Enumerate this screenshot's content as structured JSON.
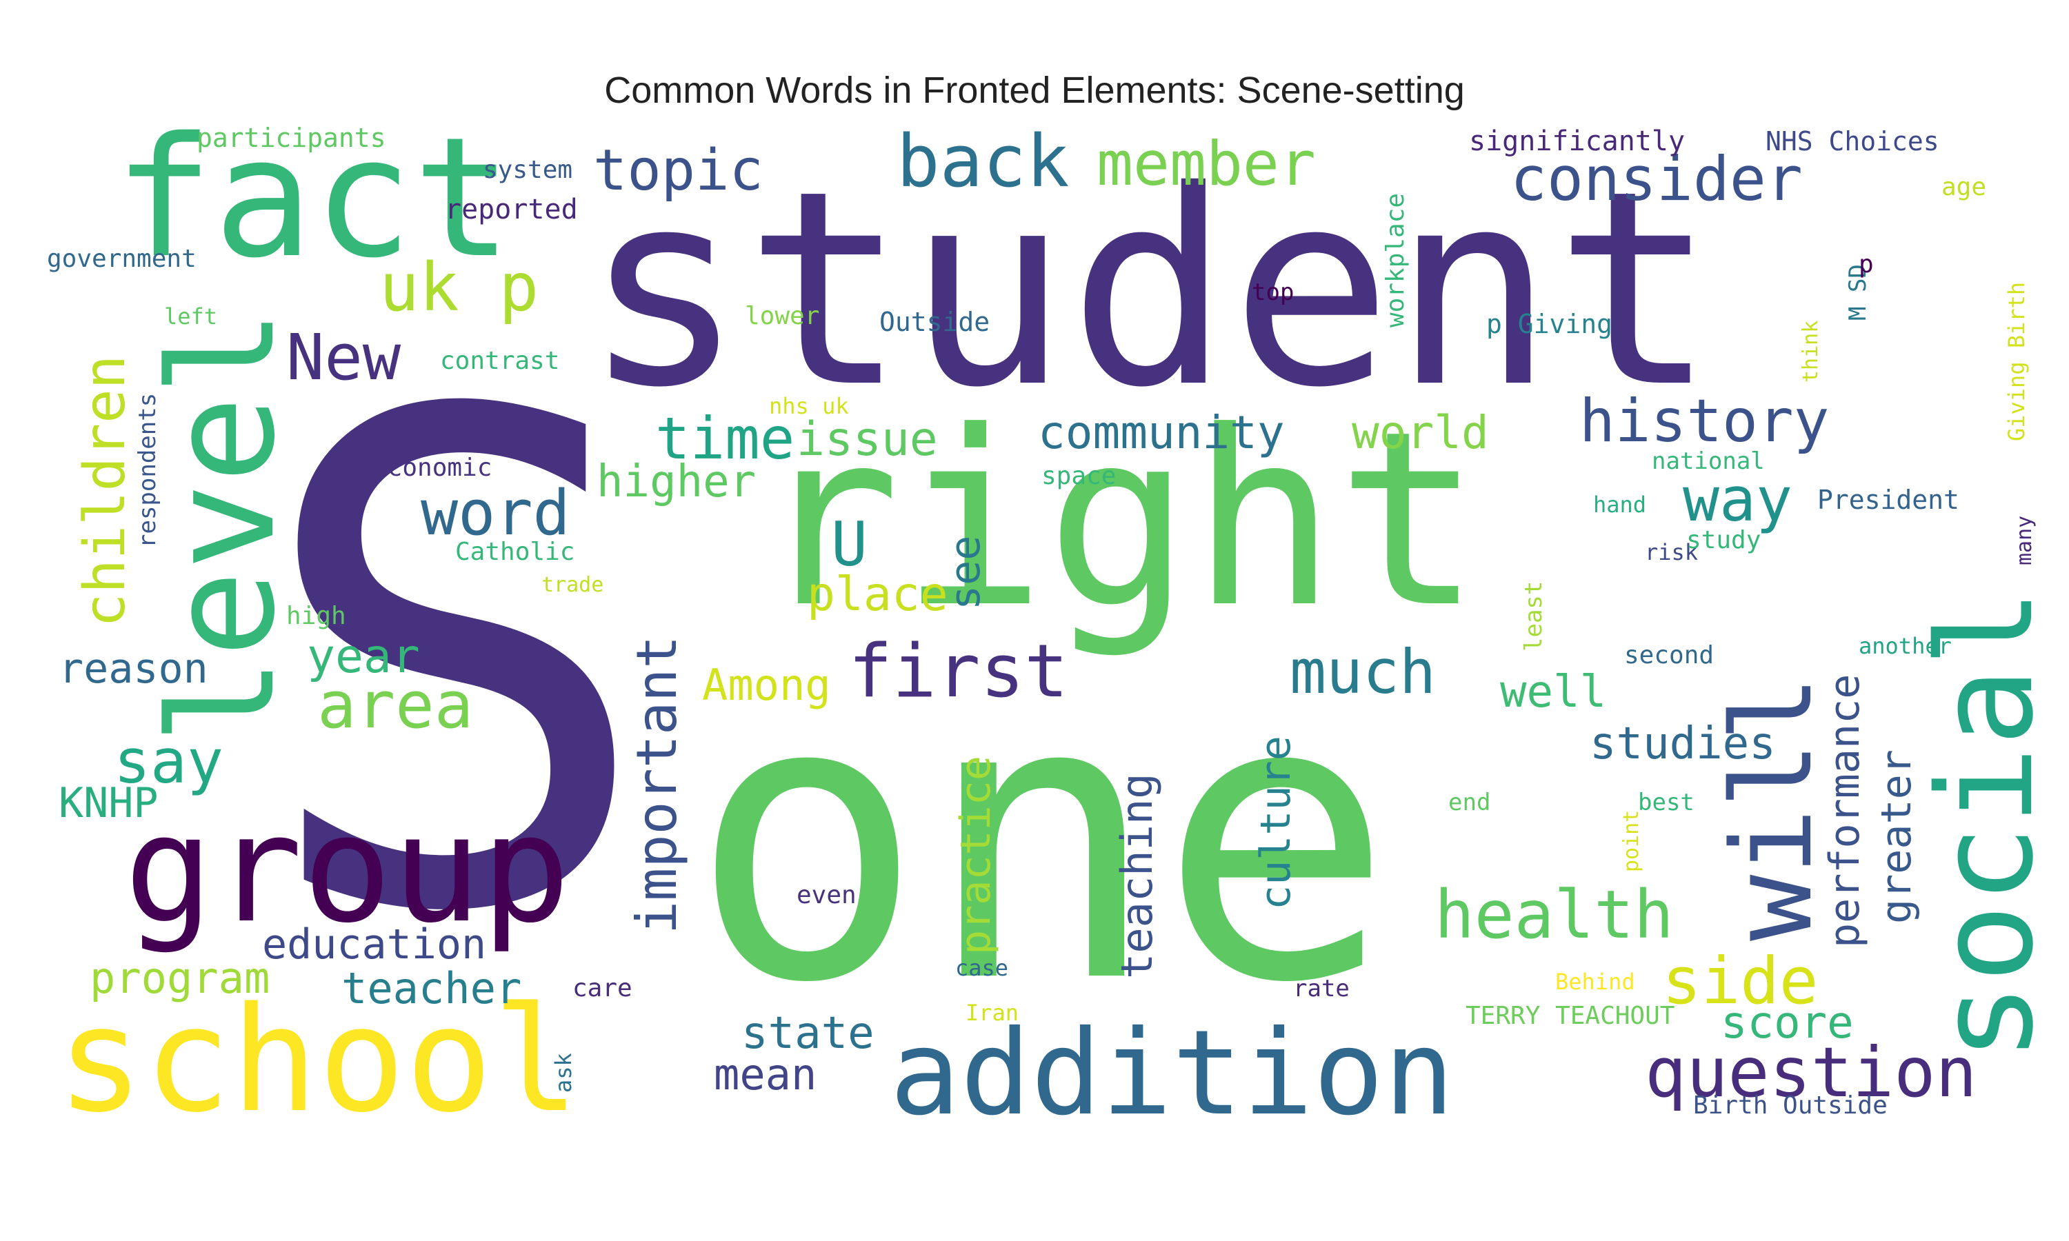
{
  "figure": {
    "title": "Common Words in Fronted Elements: Scene-setting"
  },
  "words": [
    {
      "text": "S",
      "color": "#46327e"
    },
    {
      "text": "one",
      "color": "#5ec962"
    },
    {
      "text": "student",
      "color": "#46327e"
    },
    {
      "text": "right",
      "color": "#5ec962"
    },
    {
      "text": "fact",
      "color": "#35b779"
    },
    {
      "text": "level",
      "color": "#35b779"
    },
    {
      "text": "school",
      "color": "#fde725"
    },
    {
      "text": "group",
      "color": "#440154"
    },
    {
      "text": "addition",
      "color": "#31688e"
    },
    {
      "text": "social",
      "color": "#21a585"
    },
    {
      "text": "will",
      "color": "#3b528b"
    },
    {
      "text": "question",
      "color": "#472d7b"
    },
    {
      "text": "back",
      "color": "#2c728e"
    },
    {
      "text": "member",
      "color": "#7ad151"
    },
    {
      "text": "consider",
      "color": "#3b528b"
    },
    {
      "text": "topic",
      "color": "#3b528b"
    },
    {
      "text": "uk p",
      "color": "#addc30"
    },
    {
      "text": "New",
      "color": "#46327e"
    },
    {
      "text": "children",
      "color": "#bddf26"
    },
    {
      "text": "word",
      "color": "#31688e"
    },
    {
      "text": "time",
      "color": "#20a486"
    },
    {
      "text": "issue",
      "color": "#5ec962"
    },
    {
      "text": "community",
      "color": "#2c728e"
    },
    {
      "text": "world",
      "color": "#84d44b"
    },
    {
      "text": "history",
      "color": "#3b528b"
    },
    {
      "text": "way",
      "color": "#21918c"
    },
    {
      "text": "higher",
      "color": "#5ec962"
    },
    {
      "text": "U",
      "color": "#21918c"
    },
    {
      "text": "first",
      "color": "#46327e"
    },
    {
      "text": "much",
      "color": "#287c8e"
    },
    {
      "text": "area",
      "color": "#7ad151"
    },
    {
      "text": "say",
      "color": "#22a884"
    },
    {
      "text": "year",
      "color": "#35b779"
    },
    {
      "text": "reason",
      "color": "#31688e"
    },
    {
      "text": "KNHP",
      "color": "#29af7f"
    },
    {
      "text": "important",
      "color": "#3b528b"
    },
    {
      "text": "place",
      "color": "#c8e020"
    },
    {
      "text": "see",
      "color": "#2a788e"
    },
    {
      "text": "Among",
      "color": "#d2e21b"
    },
    {
      "text": "well",
      "color": "#3fbc73"
    },
    {
      "text": "health",
      "color": "#5ec962"
    },
    {
      "text": "side",
      "color": "#d8e219"
    },
    {
      "text": "studies",
      "color": "#31688e"
    },
    {
      "text": "performance",
      "color": "#3b528b"
    },
    {
      "text": "greater",
      "color": "#38598c"
    },
    {
      "text": "score",
      "color": "#35b779"
    },
    {
      "text": "education",
      "color": "#3e4989"
    },
    {
      "text": "teacher",
      "color": "#277f8e"
    },
    {
      "text": "program",
      "color": "#a0da39"
    },
    {
      "text": "state",
      "color": "#2c728e"
    },
    {
      "text": "mean",
      "color": "#414487"
    },
    {
      "text": "teaching",
      "color": "#3b528b"
    },
    {
      "text": "culture",
      "color": "#26828e"
    },
    {
      "text": "practice",
      "color": "#a5db36"
    },
    {
      "text": "participants",
      "color": "#5ec962"
    },
    {
      "text": "system",
      "color": "#38598c"
    },
    {
      "text": "reported",
      "color": "#482878"
    },
    {
      "text": "government",
      "color": "#31688e"
    },
    {
      "text": "left",
      "color": "#5ec962"
    },
    {
      "text": "lower",
      "color": "#84d44b"
    },
    {
      "text": "Outside",
      "color": "#31688e"
    },
    {
      "text": "contrast",
      "color": "#35b779"
    },
    {
      "text": "top",
      "color": "#440154"
    },
    {
      "text": "workplace",
      "color": "#35b779"
    },
    {
      "text": "significantly",
      "color": "#482878"
    },
    {
      "text": "NHS Choices",
      "color": "#3e4989"
    },
    {
      "text": "age",
      "color": "#c2df23"
    },
    {
      "text": "p Giving",
      "color": "#26828e"
    },
    {
      "text": "M SD",
      "color": "#2a788e"
    },
    {
      "text": "p",
      "color": "#440154"
    },
    {
      "text": "think",
      "color": "#c8e020"
    },
    {
      "text": "Giving Birth",
      "color": "#d2e21b"
    },
    {
      "text": "nhs uk",
      "color": "#d2e21b"
    },
    {
      "text": "space",
      "color": "#35b779"
    },
    {
      "text": "economic",
      "color": "#46327e"
    },
    {
      "text": "respondents",
      "color": "#39568c"
    },
    {
      "text": "Catholic",
      "color": "#35b779"
    },
    {
      "text": "trade",
      "color": "#c2df23"
    },
    {
      "text": "high",
      "color": "#5ec962"
    },
    {
      "text": "national",
      "color": "#35b779"
    },
    {
      "text": "hand",
      "color": "#29af7f"
    },
    {
      "text": "President",
      "color": "#33638d"
    },
    {
      "text": "risk",
      "color": "#3e4989"
    },
    {
      "text": "study",
      "color": "#35b779"
    },
    {
      "text": "many",
      "color": "#482878"
    },
    {
      "text": "least",
      "color": "#a5db36"
    },
    {
      "text": "second",
      "color": "#31688e"
    },
    {
      "text": "another",
      "color": "#21a585"
    },
    {
      "text": "end",
      "color": "#5ec962"
    },
    {
      "text": "best",
      "color": "#35b779"
    },
    {
      "text": "point",
      "color": "#d8e219"
    },
    {
      "text": "even",
      "color": "#46327e"
    },
    {
      "text": "case",
      "color": "#31688e"
    },
    {
      "text": "Behind",
      "color": "#fde725"
    },
    {
      "text": "care",
      "color": "#472d7b"
    },
    {
      "text": "rate",
      "color": "#472d7b"
    },
    {
      "text": "Iran",
      "color": "#d2e21b"
    },
    {
      "text": "TERRY TEACHOUT",
      "color": "#6ccd5a"
    },
    {
      "text": "ask",
      "color": "#2c728e"
    },
    {
      "text": "Birth Outside",
      "color": "#3b528b"
    }
  ]
}
